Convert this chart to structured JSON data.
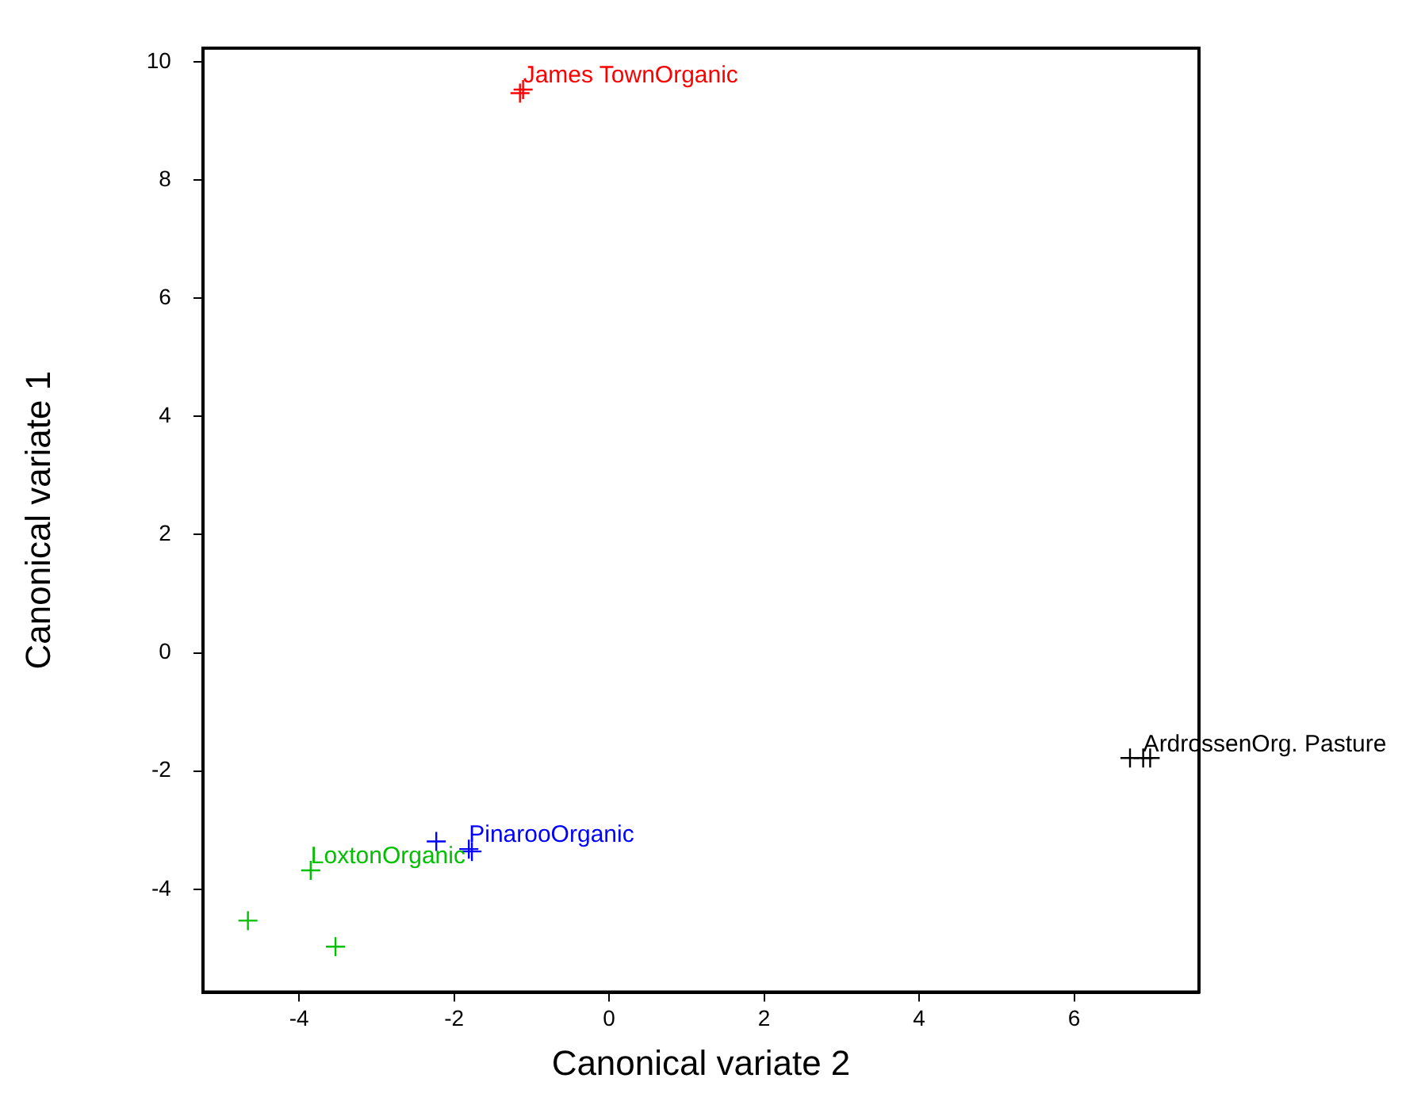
{
  "chart_data": {
    "type": "scatter",
    "xlabel": "Canonical variate 2",
    "ylabel": "Canonical variate 1",
    "xlim": [
      -5.24,
      7.61
    ],
    "ylim": [
      -5.74,
      10.23
    ],
    "xticks": [
      -4,
      -2,
      0,
      2,
      4,
      6
    ],
    "yticks": [
      -4,
      -2,
      0,
      2,
      4,
      6,
      8,
      10
    ],
    "grid": false,
    "legend": false,
    "marker": "cross",
    "series": [
      {
        "name": "James TownOrganic",
        "color": "#ff0000",
        "x": [
          -1.11,
          -1.15
        ],
        "values": [
          9.53,
          9.47
        ]
      },
      {
        "name": "ArdrossenOrg. Pasture",
        "color": "#000000",
        "x": [
          6.89,
          6.72,
          6.98
        ],
        "values": [
          -1.78,
          -1.78,
          -1.78
        ]
      },
      {
        "name": "PinarooOrganic",
        "color": "#0000ff",
        "x": [
          -1.81,
          -2.23,
          -1.77
        ],
        "values": [
          -3.32,
          -3.19,
          -3.36
        ]
      },
      {
        "name": "LoxtonOrganic",
        "color": "#00c000",
        "x": [
          -3.85,
          -4.66,
          -3.53
        ],
        "values": [
          -3.68,
          -4.53,
          -4.97
        ]
      }
    ]
  }
}
